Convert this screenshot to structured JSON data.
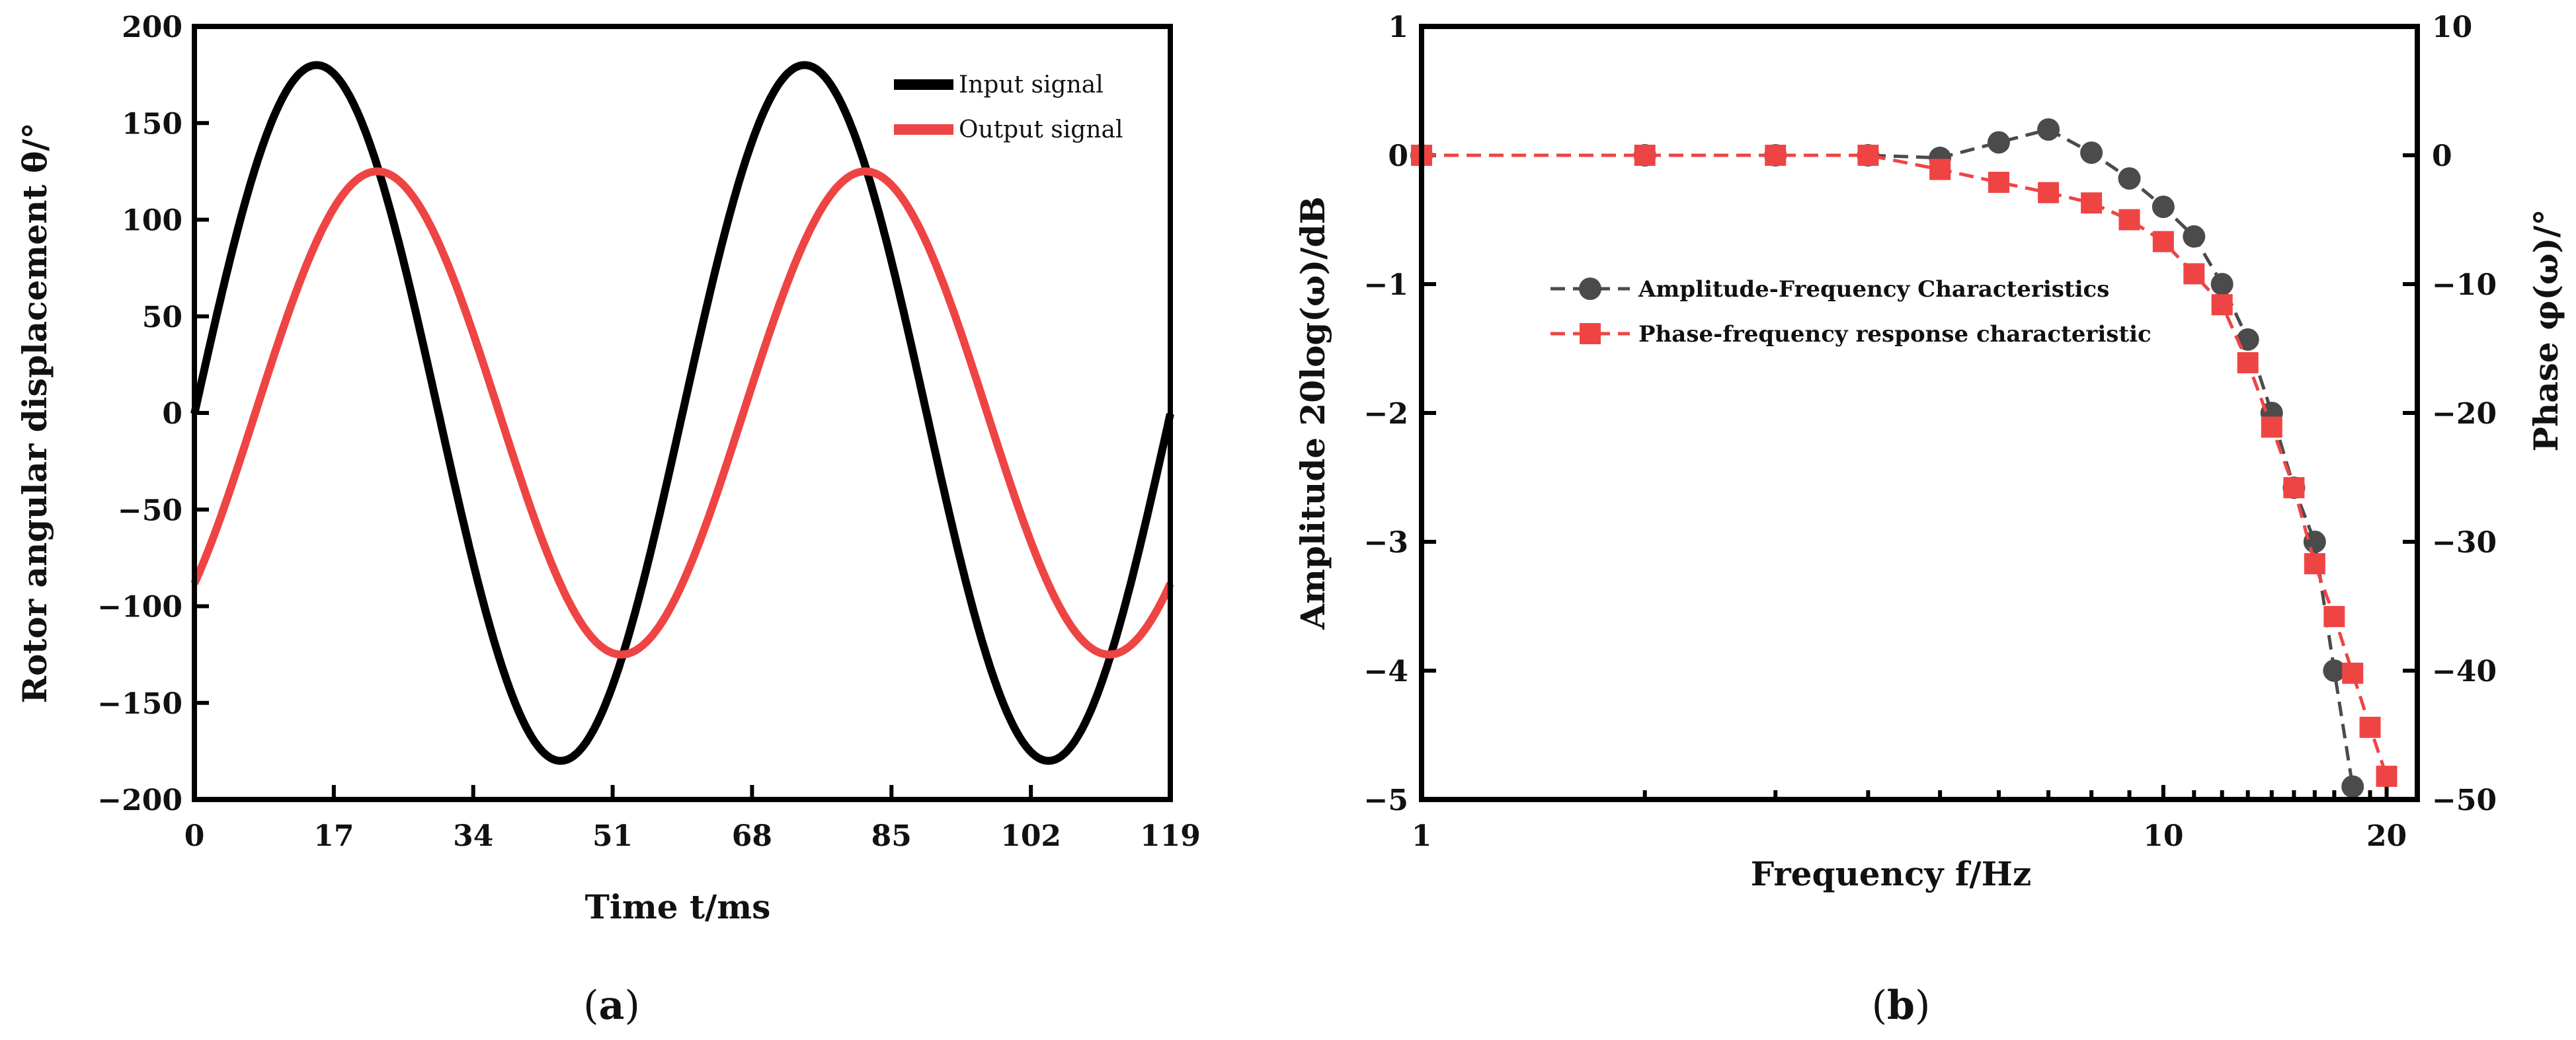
{
  "chart_data": [
    {
      "id": "a",
      "type": "line",
      "caption_open": "(",
      "caption_label": "a",
      "caption_close": ")",
      "title": "",
      "xlabel": "Time t/ms",
      "ylabel": "Rotor angular displacement θ/°",
      "xlim": [
        0,
        119
      ],
      "ylim": [
        -200,
        200
      ],
      "xticks": [
        0,
        17,
        34,
        51,
        68,
        85,
        102,
        119
      ],
      "xtick_labels": [
        "0",
        "17",
        "34",
        "51",
        "68",
        "85",
        "102",
        "119"
      ],
      "yticks": [
        200,
        150,
        100,
        50,
        0,
        -50,
        -100,
        -150,
        -200
      ],
      "ytick_labels": [
        "200",
        "150",
        "100",
        "50",
        "0",
        "−50",
        "−100",
        "−150",
        "−200"
      ],
      "legend_position": "top-right",
      "series": [
        {
          "name": "Input signal",
          "color": "#000000",
          "function": "sine",
          "amplitude": 180,
          "period_ms": 59.5,
          "peak_times_ms": [
            14.9,
            74.4
          ],
          "trough_times_ms": [
            44.6,
            104.1
          ],
          "start_value": 0,
          "end_value": 0
        },
        {
          "name": "Output signal",
          "color": "#ef4444",
          "function": "sine",
          "amplitude": 125,
          "period_ms": 59.5,
          "peak_times_ms": [
            22.3,
            81.8
          ],
          "trough_times_ms": [
            52.1,
            111.6
          ],
          "start_value": -90,
          "end_value": -90
        }
      ]
    },
    {
      "id": "b",
      "type": "line",
      "caption_open": "(",
      "caption_label": "b",
      "caption_close": ")",
      "title": "",
      "xlabel": "Frequency f/Hz",
      "ylabel": "Amplitude 20log(ω)/dB",
      "y2label": "Phase φ(ω)/°",
      "xscale": "log",
      "xlim": [
        1,
        22
      ],
      "ylim": [
        -5,
        1
      ],
      "y2lim": [
        -50,
        10
      ],
      "xticks": [
        1,
        10,
        20
      ],
      "xtick_labels": [
        "1",
        "10",
        "20"
      ],
      "x_minor_ticks": [
        2,
        3,
        4,
        5,
        6,
        7,
        8,
        9,
        11,
        12,
        13,
        14,
        15,
        16,
        17,
        18,
        19
      ],
      "yticks": [
        1,
        0,
        -1,
        -2,
        -3,
        -4,
        -5
      ],
      "ytick_labels": [
        "1",
        "0",
        "−1",
        "−2",
        "−3",
        "−4",
        "−5"
      ],
      "y2ticks": [
        10,
        0,
        -10,
        -20,
        -30,
        -40,
        -50
      ],
      "y2tick_labels": [
        "10",
        "0",
        "−10",
        "−20",
        "−30",
        "−40",
        "−50"
      ],
      "legend_position": "center-left",
      "series": [
        {
          "name": "Amplitude-Frequency Characteristics",
          "axis": "left",
          "marker": "circle",
          "color": "#4b4b4b",
          "x": [
            1,
            2,
            3,
            4,
            5,
            6,
            7,
            8,
            9,
            10,
            11,
            12,
            13,
            14,
            15,
            16,
            17,
            18
          ],
          "y": [
            0,
            0,
            0,
            0,
            -0.02,
            0.1,
            0.2,
            0.02,
            -0.18,
            -0.4,
            -0.63,
            -1.0,
            -1.43,
            -2.0,
            -2.58,
            -3.0,
            -4.0,
            -4.9
          ]
        },
        {
          "name": "Phase-frequency response characteristic",
          "axis": "right",
          "marker": "square",
          "color": "#ef4444",
          "x": [
            1,
            2,
            3,
            4,
            5,
            6,
            7,
            8,
            9,
            10,
            11,
            12,
            13,
            14,
            15,
            16,
            17,
            18,
            19,
            20
          ],
          "y": [
            0,
            0,
            0,
            0,
            -1.1,
            -2.1,
            -2.9,
            -3.7,
            -5.0,
            -6.7,
            -9.2,
            -11.6,
            -16.1,
            -21.1,
            -25.8,
            -31.7,
            -35.8,
            -40.2,
            -44.4,
            -48.2
          ]
        }
      ]
    }
  ]
}
